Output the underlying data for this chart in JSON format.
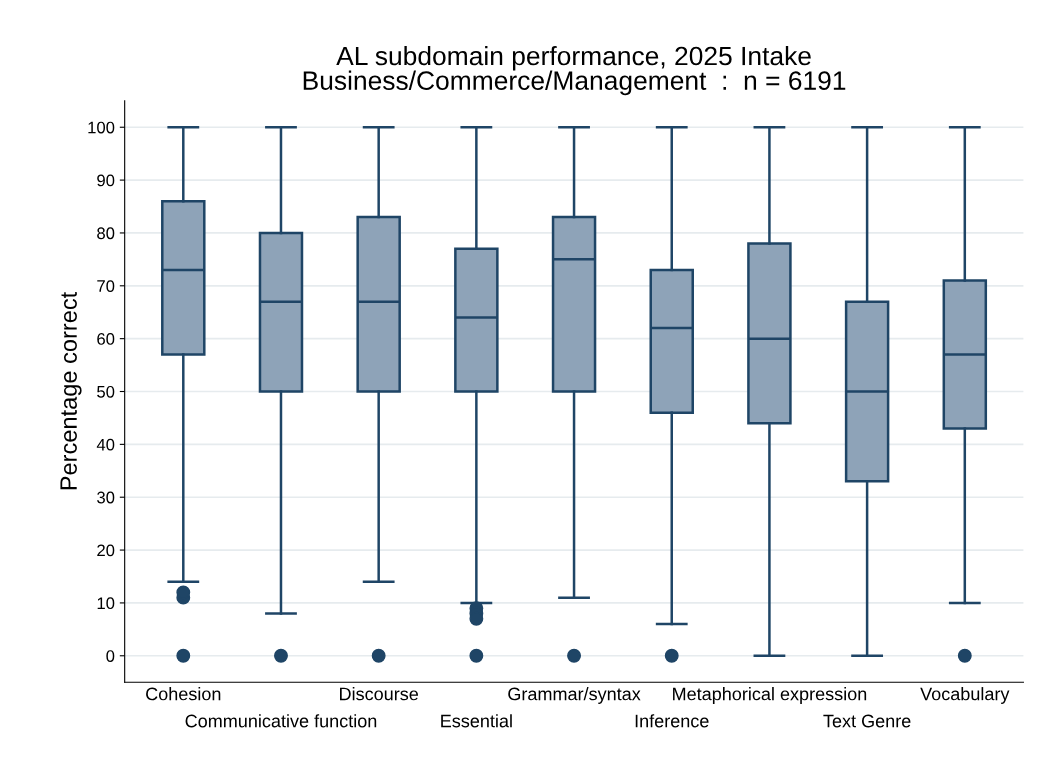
{
  "chart_data": {
    "type": "box",
    "title": "AL subdomain performance, 2025 Intake\nBusiness/Commerce/Management  :  n = 6191",
    "ylabel": "Percentage correct",
    "categories": [
      "Cohesion",
      "Communicative function",
      "Discourse",
      "Essential",
      "Grammar/syntax",
      "Inference",
      "Metaphorical expression",
      "Text Genre",
      "Vocabulary"
    ],
    "color": "#8ea3b8",
    "boxes": [
      {
        "low": 14,
        "q1": 57,
        "median": 73,
        "q3": 86,
        "high": 100,
        "outliers": [
          11,
          12,
          0
        ]
      },
      {
        "low": 8,
        "q1": 50,
        "median": 67,
        "q3": 80,
        "high": 100,
        "outliers": [
          0
        ]
      },
      {
        "low": 14,
        "q1": 50,
        "median": 67,
        "q3": 83,
        "high": 100,
        "outliers": [
          0
        ]
      },
      {
        "low": 10,
        "q1": 50,
        "median": 64,
        "q3": 77,
        "high": 100,
        "outliers": [
          9,
          8,
          7,
          0
        ]
      },
      {
        "low": 11,
        "q1": 50,
        "median": 75,
        "q3": 83,
        "high": 100,
        "outliers": [
          0
        ]
      },
      {
        "low": 6,
        "q1": 46,
        "median": 62,
        "q3": 73,
        "high": 100,
        "outliers": [
          0
        ]
      },
      {
        "low": 0,
        "q1": 44,
        "median": 60,
        "q3": 78,
        "high": 100
      },
      {
        "low": 0,
        "q1": 33,
        "median": 50,
        "q3": 67,
        "high": 100
      },
      {
        "low": 10,
        "q1": 43,
        "median": 57,
        "q3": 71,
        "high": 100,
        "outliers": [
          0
        ]
      }
    ],
    "ylim": [
      -5,
      105
    ],
    "yticks": [
      0,
      10,
      20,
      30,
      40,
      50,
      60,
      70,
      80,
      90,
      100
    ],
    "grid": "y"
  }
}
